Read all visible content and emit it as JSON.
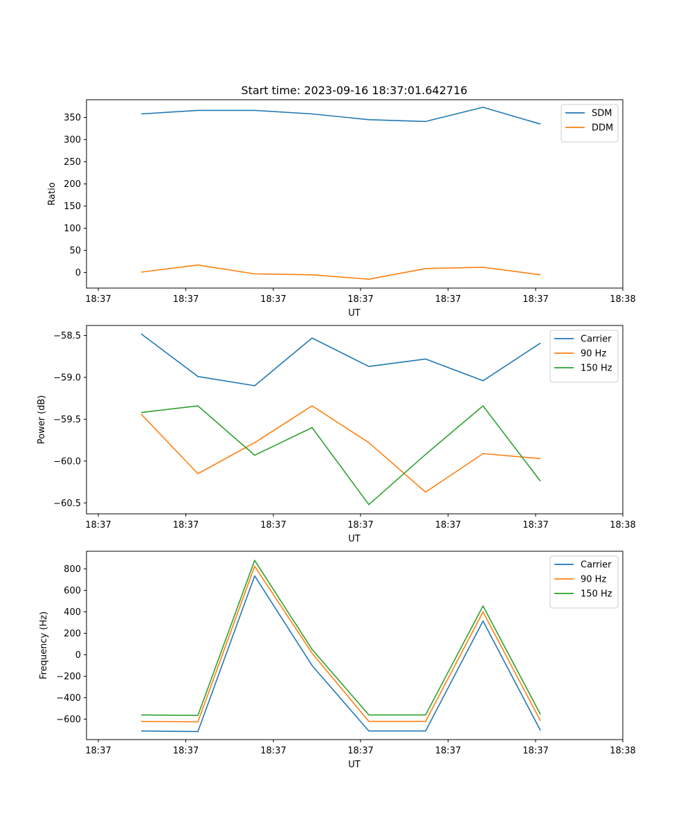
{
  "chart_data": [
    {
      "type": "line",
      "title": "Start time: 2023-09-16 18:37:01.642716",
      "xlabel": "UT",
      "ylabel": "Ratio",
      "xticks": [
        "18:37",
        "18:37",
        "18:37",
        "18:37",
        "18:37",
        "18:37",
        "18:38"
      ],
      "ylim": [
        -35,
        390
      ],
      "yticks": [
        0,
        50,
        100,
        150,
        200,
        250,
        300,
        350
      ],
      "legend": "top-right",
      "series": [
        {
          "name": "SDM",
          "color": "#1f77b4",
          "values": [
            358,
            366,
            366,
            358,
            345,
            341,
            373,
            335
          ]
        },
        {
          "name": "DDM",
          "color": "#ff7f0e",
          "values": [
            1,
            17,
            -3,
            -5,
            -15,
            9,
            12,
            -5
          ]
        }
      ]
    },
    {
      "type": "line",
      "title": "",
      "xlabel": "UT",
      "ylabel": "Power (dB)",
      "xticks": [
        "18:37",
        "18:37",
        "18:37",
        "18:37",
        "18:37",
        "18:37",
        "18:38"
      ],
      "ylim": [
        -60.63,
        -58.38
      ],
      "yticks": [
        -58.5,
        -59.0,
        -59.5,
        -60.0,
        -60.5
      ],
      "legend": "top-right",
      "series": [
        {
          "name": "Carrier",
          "color": "#1f77b4",
          "values": [
            -58.48,
            -58.99,
            -59.1,
            -58.53,
            -58.87,
            -58.78,
            -59.04,
            -58.59
          ]
        },
        {
          "name": "90 Hz",
          "color": "#ff7f0e",
          "values": [
            -59.44,
            -60.15,
            -59.78,
            -59.34,
            -59.78,
            -60.37,
            -59.91,
            -59.97
          ]
        },
        {
          "name": "150 Hz",
          "color": "#2ca02c",
          "values": [
            -59.42,
            -59.34,
            -59.93,
            -59.6,
            -60.52,
            -59.92,
            -59.34,
            -60.24
          ]
        }
      ]
    },
    {
      "type": "line",
      "title": "",
      "xlabel": "UT",
      "ylabel": "Frequency (Hz)",
      "xticks": [
        "18:37",
        "18:37",
        "18:37",
        "18:37",
        "18:37",
        "18:37",
        "18:38"
      ],
      "ylim": [
        -790,
        965
      ],
      "yticks": [
        800,
        600,
        400,
        200,
        0,
        -200,
        -400,
        -600
      ],
      "legend": "top-right",
      "series": [
        {
          "name": "Carrier",
          "color": "#1f77b4",
          "values": [
            -710,
            -715,
            735,
            -100,
            -710,
            -710,
            315,
            -705
          ]
        },
        {
          "name": "90 Hz",
          "color": "#ff7f0e",
          "values": [
            -620,
            -625,
            825,
            15,
            -620,
            -620,
            400,
            -615
          ]
        },
        {
          "name": "150 Hz",
          "color": "#2ca02c",
          "values": [
            -560,
            -565,
            880,
            50,
            -560,
            -560,
            455,
            -555
          ]
        }
      ]
    }
  ]
}
